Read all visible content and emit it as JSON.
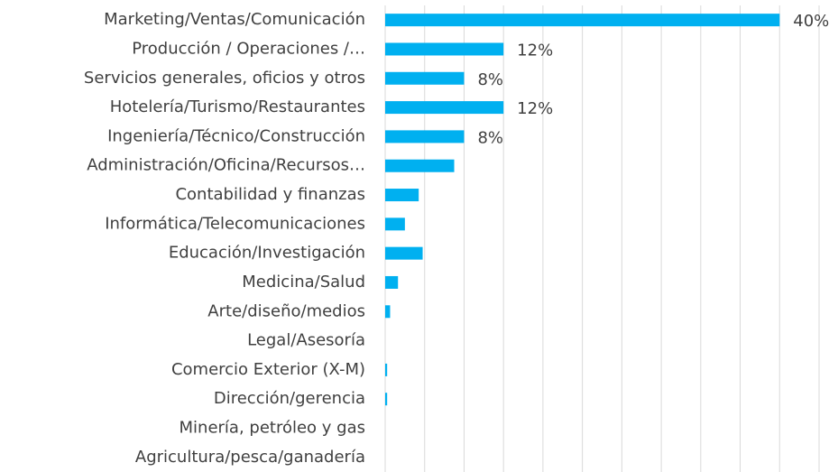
{
  "chart_data": {
    "type": "barh",
    "categories": [
      "Marketing/Ventas/Comunicación",
      "Producción / Operaciones /…",
      "Servicios generales, oficios y otros",
      "Hotelería/Turismo/Restaurantes",
      "Ingeniería/Técnico/Construcción",
      "Administración/Oficina/Recursos…",
      "Contabilidad y finanzas",
      "Informática/Telecomunicaciones",
      "Educación/Investigación",
      "Medicina/Salud",
      "Arte/diseño/medios",
      "Legal/Asesoría",
      "Comercio Exterior (X-M)",
      "Dirección/gerencia",
      "Minería, petróleo y gas",
      "Agricultura/pesca/ganadería"
    ],
    "values": [
      40,
      12,
      8,
      12,
      8,
      7,
      3.4,
      2,
      3.8,
      1.3,
      0.5,
      0,
      0.2,
      0.2,
      0,
      0
    ],
    "value_labels": [
      "40%",
      "12%",
      "8%",
      "12%",
      "8%",
      null,
      null,
      null,
      null,
      null,
      null,
      null,
      null,
      null,
      null,
      null
    ],
    "color": "#00b0f0",
    "xlim": [
      0,
      44
    ],
    "xticks": [
      0,
      4,
      8,
      12,
      16,
      20,
      24,
      28,
      32,
      36,
      40,
      44
    ],
    "grid": true
  }
}
